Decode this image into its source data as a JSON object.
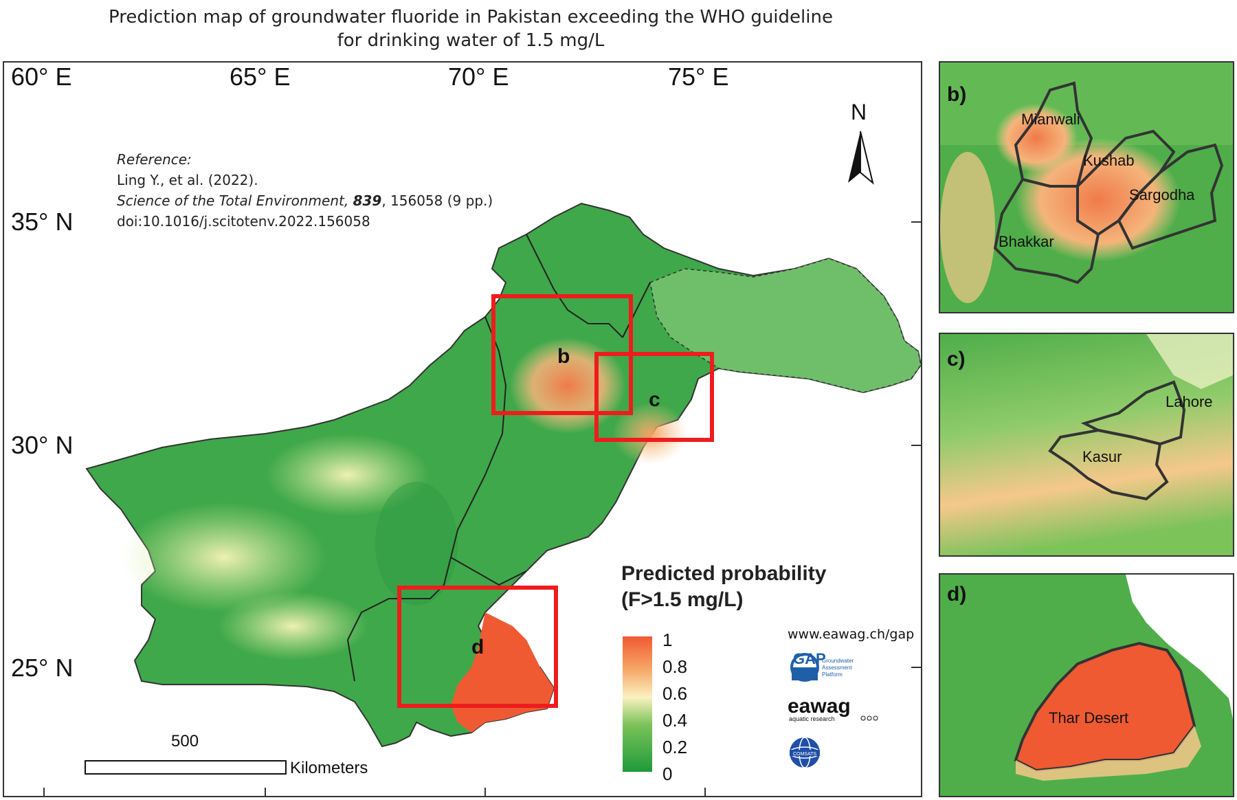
{
  "title": {
    "line1": "Prediction map of groundwater fluoride in Pakistan exceeding the WHO guideline",
    "line2": "for drinking water of 1.5 mg/L"
  },
  "main_map": {
    "longitudes": [
      "60° E",
      "65° E",
      "70° E",
      "75° E"
    ],
    "latitudes": [
      "35° N",
      "30° N",
      "25° N"
    ],
    "reference": {
      "heading": "Reference:",
      "authors": "Ling Y., et al. (2022).",
      "journal": "Science of the Total Environment,",
      "volume": "839",
      "pages": ", 156058 (9 pp.)",
      "doi": "doi:10.1016/j.scitotenv.2022.156058"
    },
    "north_label": "N",
    "box_labels": [
      "b",
      "c",
      "d"
    ],
    "box_color": "#ee1c1c",
    "scale_bar": {
      "distance": "500",
      "unit": "Kilometers"
    },
    "website": "www.eawag.ch/gap",
    "logos": {
      "gap": {
        "name": "gap-logo",
        "short": "GAP",
        "line1": "Groundwater",
        "line2": "Assessment",
        "line3": "Platform"
      },
      "eawag": {
        "name": "eawag-logo",
        "text": "eawag",
        "sub": "aquatic research"
      },
      "comsats": {
        "name": "comsats-logo",
        "text": "COMSATS"
      }
    }
  },
  "legend": {
    "title_line1": "Predicted probability",
    "title_line2": "(F>1.5 mg/L)",
    "ticks": [
      "1",
      "0.8",
      "0.6",
      "0.4",
      "0.2",
      "0"
    ],
    "colors": {
      "high": "#f05a32",
      "mid_high": "#f6a96b",
      "mid": "#fbf1c0",
      "mid_low": "#7cc35a",
      "low": "#1f9a3a"
    }
  },
  "insets": {
    "b": {
      "letter": "b)",
      "places": [
        "Mianwali",
        "Kushab",
        "Sargodha",
        "Bhakkar"
      ]
    },
    "c": {
      "letter": "c)",
      "places": [
        "Lahore",
        "Kasur"
      ]
    },
    "d": {
      "letter": "d)",
      "places": [
        "Thar Desert"
      ]
    }
  }
}
